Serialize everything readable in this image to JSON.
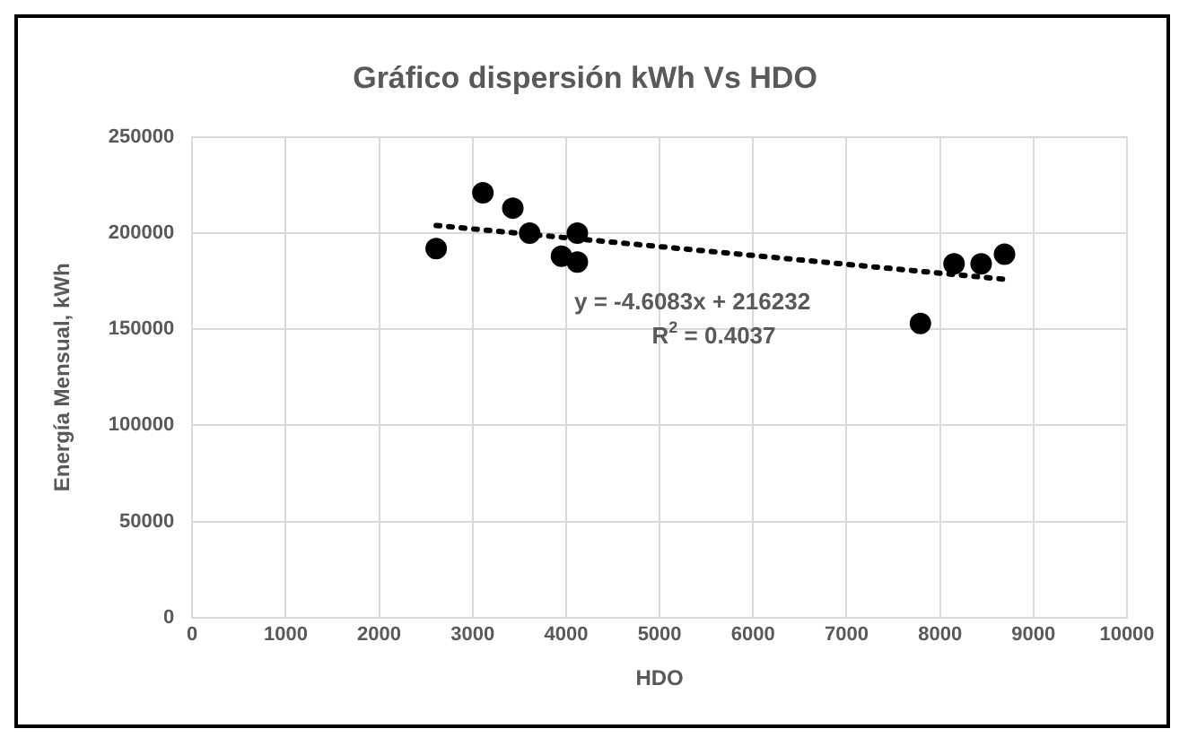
{
  "chart_data": {
    "type": "scatter",
    "title": "Gráfico dispersión kWh Vs HDO",
    "xlabel": "HDO",
    "ylabel": "Energía Mensual, kWh",
    "series": [
      {
        "color": "#000000",
        "x": [
          2610,
          3110,
          3430,
          3610,
          3950,
          4120,
          4120,
          7790,
          8150,
          8440,
          8690
        ],
        "values": [
          192000,
          221000,
          213000,
          200000,
          188000,
          200000,
          185000,
          153000,
          184000,
          184000,
          189000
        ]
      },
      {
        "type": "line",
        "color": "#000000",
        "line_style": "dotted",
        "marker": "none",
        "x": [
          2610,
          8690
        ],
        "values": [
          204000,
          176000
        ]
      }
    ],
    "xlim": [
      0,
      10000
    ],
    "xticks": [
      0,
      1000,
      2000,
      3000,
      4000,
      5000,
      6000,
      7000,
      8000,
      9000,
      10000
    ],
    "ylim": [
      0,
      250000
    ],
    "yticks": [
      0,
      50000,
      100000,
      150000,
      200000,
      250000
    ],
    "grid": true,
    "legend": false,
    "marker": "circle",
    "annotations": [
      "y = -4.6083x + 216232",
      "R$^{2}$ = 0.4037"
    ]
  }
}
